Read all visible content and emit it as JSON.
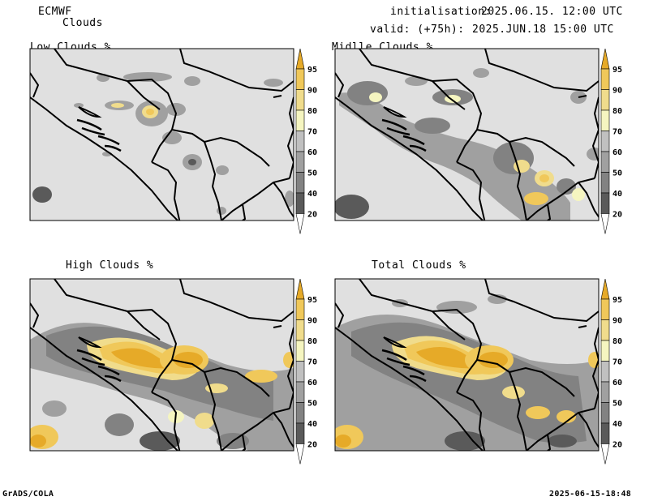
{
  "header": {
    "model": "ECMWF",
    "product": "Clouds",
    "init_label": "initialisation:",
    "init_value": "2025.06.15. 12:00 UTC",
    "valid_label": "valid: (+75h):",
    "valid_value": "2025.JUN.18 15:00 UTC"
  },
  "panels": [
    {
      "title": "Low Clouds %"
    },
    {
      "title": "Midlle Clouds %"
    },
    {
      "title": "High Clouds %"
    },
    {
      "title": "Total Clouds %"
    }
  ],
  "colorbar": {
    "levels": [
      "20",
      "40",
      "50",
      "60",
      "70",
      "80",
      "90",
      "95"
    ],
    "colors": [
      "#ffffff",
      "#5a5a5a",
      "#828282",
      "#a0a0a0",
      "#c0c0c0",
      "#f5f5c0",
      "#f0dc8c",
      "#f0c85a",
      "#e6aa28"
    ]
  },
  "colors": {
    "background": "#e0e0e0",
    "light_gray": "#c0c0c0",
    "mid_gray": "#a0a0a0",
    "gray": "#828282",
    "dark_gray": "#5a5a5a",
    "pale_yellow": "#f5f5c0",
    "light_orange": "#f0dc8c",
    "orange": "#f0c85a",
    "deep_orange": "#e6aa28",
    "border": "#000000"
  },
  "footer": {
    "left": "GrADS/COLA",
    "right": "2025-06-15-18:48"
  }
}
